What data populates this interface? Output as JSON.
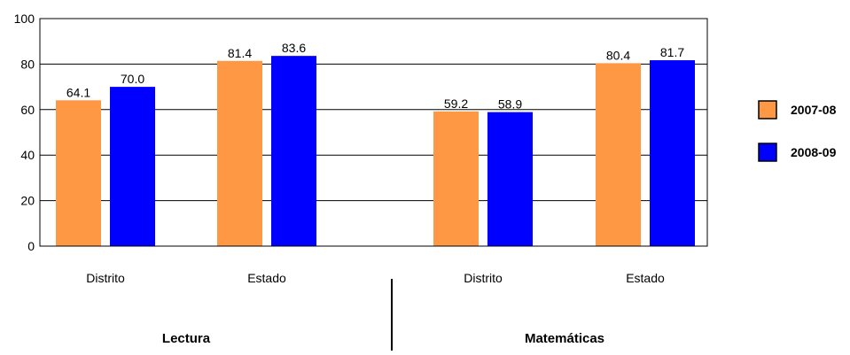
{
  "chart_data": {
    "type": "bar",
    "ylim": [
      0,
      100
    ],
    "yticks": [
      0,
      20,
      40,
      60,
      80,
      100
    ],
    "grid": true,
    "legend_placement": "right",
    "groups": [
      {
        "label": "Lectura",
        "categories": [
          "Distrito",
          "Estado"
        ]
      },
      {
        "label": "Matemáticas",
        "categories": [
          "Distrito",
          "Estado"
        ]
      }
    ],
    "categories": [
      "Distrito",
      "Estado",
      "Distrito",
      "Estado"
    ],
    "series": [
      {
        "name": "2007-08",
        "color": "#FF9844",
        "values": [
          64.1,
          81.4,
          59.2,
          80.4
        ],
        "value_labels": [
          "64.1",
          "81.4",
          "59.2",
          "80.4"
        ]
      },
      {
        "name": "2008-09",
        "color": "#0000FF",
        "values": [
          70.0,
          83.6,
          58.9,
          81.7
        ],
        "value_labels": [
          "70.0",
          "83.6",
          "58.9",
          "81.7"
        ]
      }
    ]
  }
}
